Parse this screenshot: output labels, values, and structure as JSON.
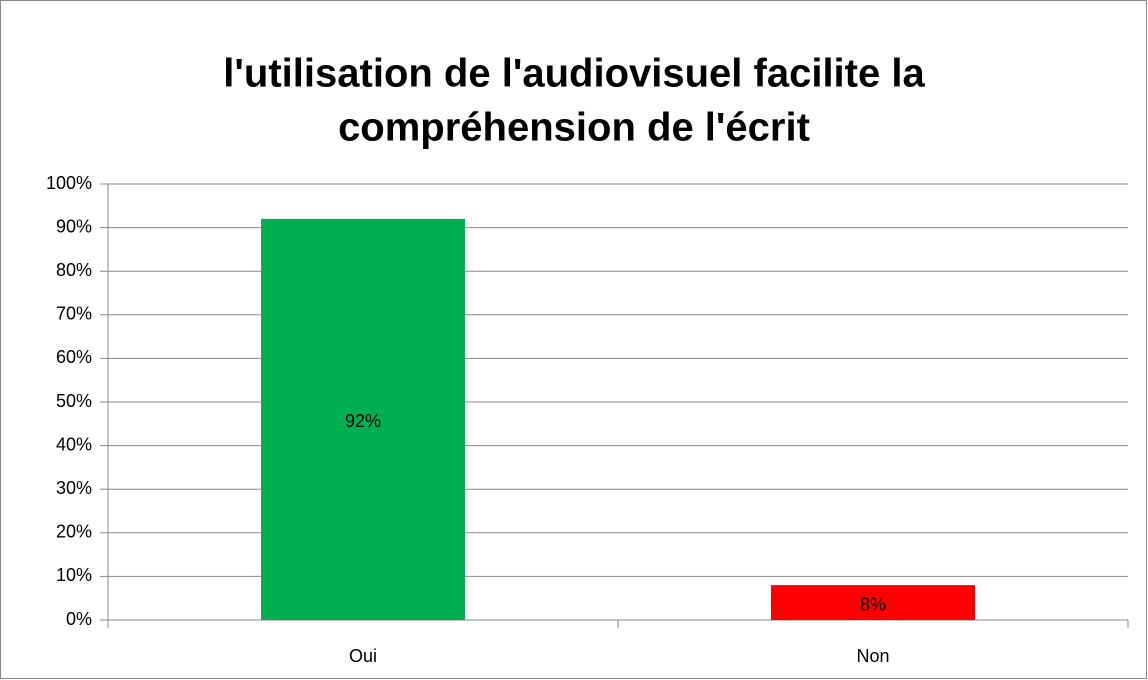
{
  "chart_data": {
    "type": "bar",
    "title": [
      "l'utilisation de l'audiovisuel facilite la",
      "compréhension de l'écrit"
    ],
    "categories": [
      "Oui",
      "Non"
    ],
    "values": [
      92,
      8
    ],
    "value_labels": [
      "92%",
      "8%"
    ],
    "colors": [
      "#00b050",
      "#ff0000"
    ],
    "ylim": [
      0,
      100
    ],
    "yticks": [
      {
        "value": 0,
        "label": "0%"
      },
      {
        "value": 10,
        "label": "10%"
      },
      {
        "value": 20,
        "label": "20%"
      },
      {
        "value": 30,
        "label": "30%"
      },
      {
        "value": 40,
        "label": "40%"
      },
      {
        "value": 50,
        "label": "50%"
      },
      {
        "value": 60,
        "label": "60%"
      },
      {
        "value": 70,
        "label": "70%"
      },
      {
        "value": 80,
        "label": "80%"
      },
      {
        "value": 90,
        "label": "90%"
      },
      {
        "value": 100,
        "label": "100%"
      }
    ],
    "grid": true
  }
}
